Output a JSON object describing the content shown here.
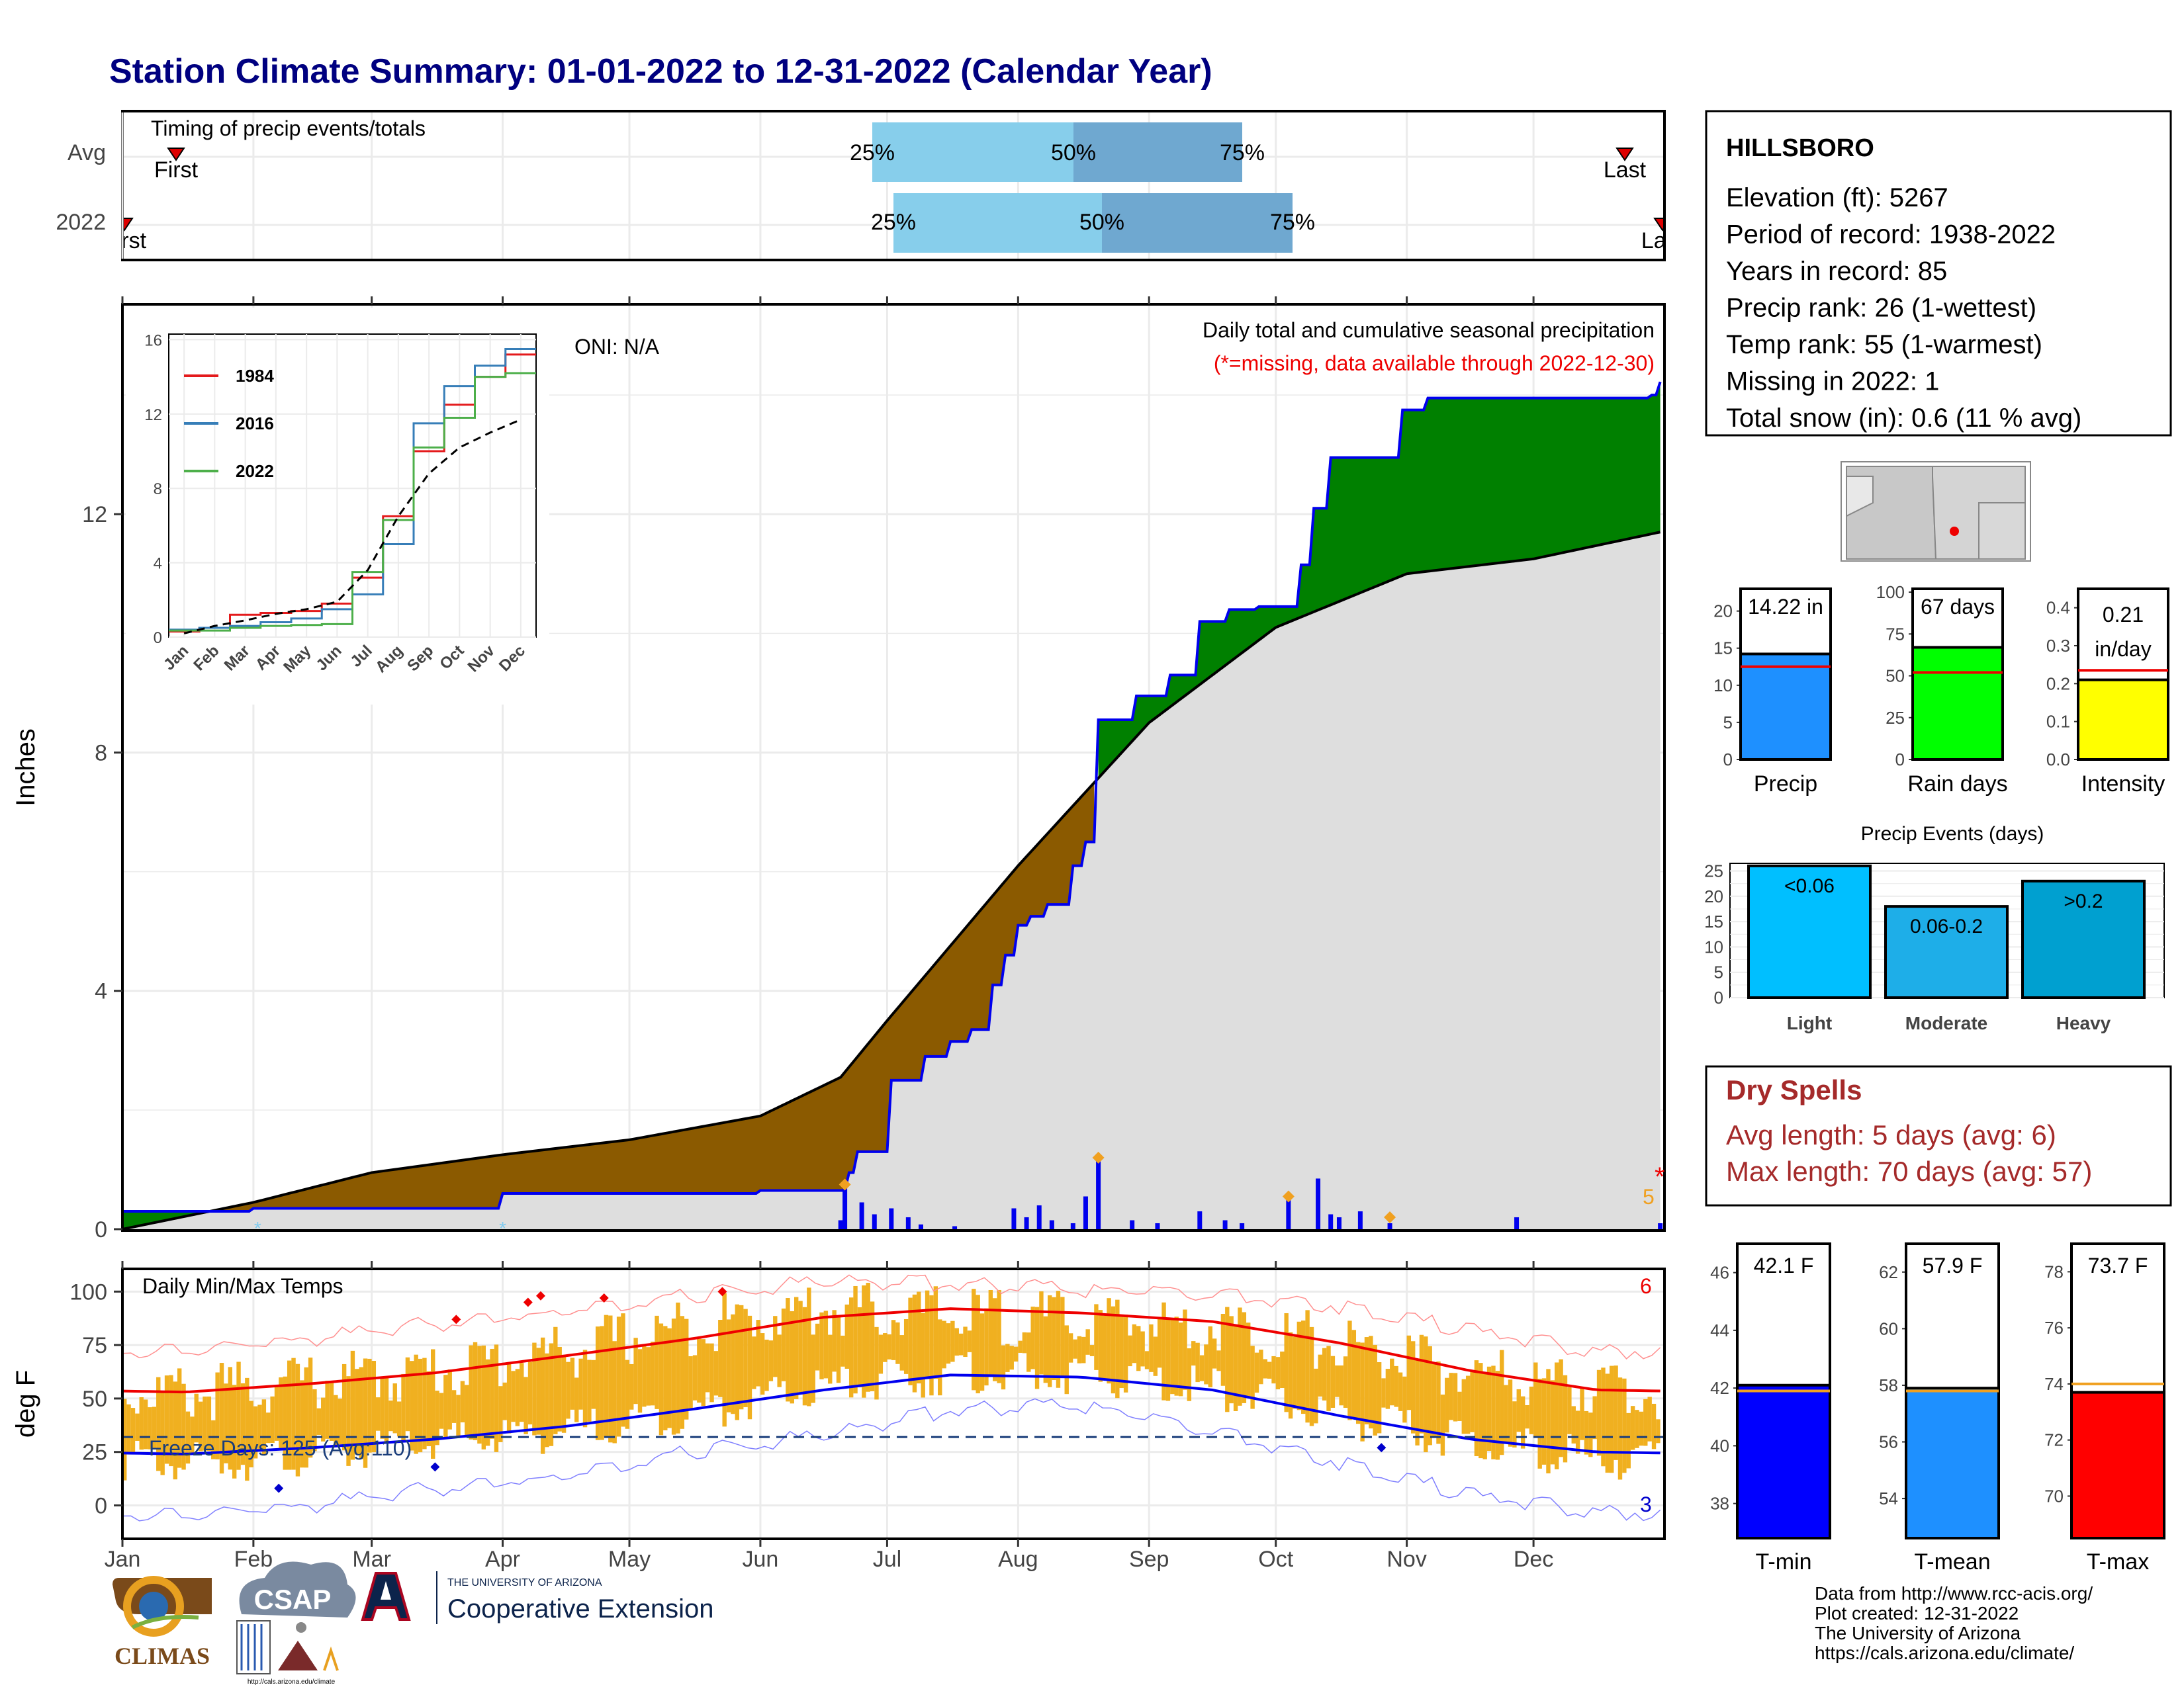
{
  "title": "Station Climate Summary: 01-01-2022 to 12-31-2022 (Calendar Year)",
  "timing_panel": {
    "title": "Timing of precip events/totals",
    "rows": [
      "Avg",
      "2022"
    ],
    "avg": {
      "first_label": "First",
      "last_label": "Last",
      "p25": "25%",
      "p50": "50%",
      "p75": "75%"
    },
    "y2022": {
      "first_label": "First",
      "last_label": "Last",
      "p25": "25%",
      "p50": "50%",
      "p75": "75%"
    }
  },
  "precip_panel": {
    "ylabel": "Inches",
    "caption": "Daily total and cumulative seasonal precipitation",
    "missing_note": "(*=missing, data available through 2022-12-30)",
    "oni": "ONI: N/A",
    "count_label": "5",
    "missing_marker": "*",
    "yticks": [
      "0",
      "4",
      "8",
      "12"
    ]
  },
  "inset": {
    "yticks": [
      "0",
      "4",
      "8",
      "12",
      "16"
    ],
    "months": [
      "Jan",
      "Feb",
      "Mar",
      "Apr",
      "May",
      "Jun",
      "Jul",
      "Aug",
      "Sep",
      "Oct",
      "Nov",
      "Dec"
    ],
    "legend": [
      "1984",
      "2016",
      "2022"
    ],
    "colors": {
      "1984": "#e41a1c",
      "2016": "#377eb8",
      "2022": "#4daf4a"
    }
  },
  "temp_panel": {
    "title": "Daily Min/Max Temps",
    "ylabel": "deg F",
    "freeze_label": "Freeze Days: 125 (Avg:110)",
    "count_top": "6",
    "count_bottom": "3",
    "yticks": [
      "0",
      "25",
      "50",
      "75",
      "100"
    ]
  },
  "months": [
    "Jan",
    "Feb",
    "Mar",
    "Apr",
    "May",
    "Jun",
    "Jul",
    "Aug",
    "Sep",
    "Oct",
    "Nov",
    "Dec"
  ],
  "station": {
    "name": "HILLSBORO",
    "lines": [
      "Elevation (ft): 5267",
      "Period of record: 1938-2022",
      "Years in record: 85",
      "Precip rank: 26 (1-wettest)",
      "Temp rank: 55 (1-warmest)",
      "Missing in 2022: 1",
      "Total snow (in): 0.6 (11 % avg)"
    ]
  },
  "summary_bars": [
    {
      "label": "Precip",
      "value_text": "14.22 in",
      "color": "#1e90ff",
      "yticks": [
        "0",
        "5",
        "10",
        "15",
        "20"
      ]
    },
    {
      "label": "Rain days",
      "value_text": "67 days",
      "color": "#00ff00",
      "yticks": [
        "0",
        "25",
        "50",
        "75",
        "100"
      ]
    },
    {
      "label": "Intensity",
      "value_text_1": "0.21",
      "value_text_2": "in/day",
      "color": "#ffff00",
      "yticks": [
        "0.0",
        "0.1",
        "0.2",
        "0.3",
        "0.4"
      ]
    }
  ],
  "precip_events": {
    "title": "Precip Events (days)",
    "bars": [
      {
        "label": "Light",
        "inner": "<0.06",
        "color": "#00bfff"
      },
      {
        "label": "Moderate",
        "inner": "0.06-0.2",
        "color": "#1eaee8"
      },
      {
        "label": "Heavy",
        "inner": ">0.2",
        "color": "#00a0d0"
      }
    ],
    "yticks": [
      "0",
      "5",
      "10",
      "15",
      "20",
      "25"
    ]
  },
  "dry_spells": {
    "title": "Dry Spells",
    "avg": "Avg length: 5 days (avg: 6)",
    "max": "Max length: 70 days (avg: 57)"
  },
  "temp_bars": [
    {
      "label": "T-min",
      "value_text": "42.1 F",
      "color": "#0000ff",
      "yticks": [
        "38",
        "40",
        "42",
        "44",
        "46"
      ]
    },
    {
      "label": "T-mean",
      "value_text": "57.9 F",
      "color": "#1e90ff",
      "yticks": [
        "54",
        "56",
        "58",
        "60",
        "62"
      ]
    },
    {
      "label": "T-max",
      "value_text": "73.7 F",
      "color": "#ff0000",
      "yticks": [
        "70",
        "72",
        "74",
        "76",
        "78"
      ]
    }
  ],
  "footer": {
    "lines": [
      "Data from http://www.rcc-acis.org/",
      "Plot created: 12-31-2022",
      "The University of Arizona",
      "https://cals.arizona.edu/climate/"
    ],
    "logos": {
      "climas": "CLIMAS",
      "csap": "CSAP",
      "csap_url": "http://cals.arizona.edu/climate",
      "ua_small": "THE UNIVERSITY OF ARIZONA",
      "ua_big": "Cooperative Extension"
    }
  },
  "chart_data": [
    {
      "type": "area",
      "title": "Daily total and cumulative seasonal precipitation",
      "ylabel": "Inches",
      "ylim": [
        0,
        15.5
      ],
      "x_unit": "day of year",
      "series": [
        {
          "name": "2022 cumulative",
          "x": [
            1,
            32,
            60,
            91,
            121,
            152,
            171,
            173,
            175,
            183,
            191,
            197,
            202,
            207,
            210,
            213,
            216,
            220,
            226,
            229,
            232,
            241,
            249,
            256,
            263,
            270,
            280,
            283,
            287,
            304,
            310,
            335,
            363,
            365
          ],
          "values": [
            0.3,
            0.35,
            0.35,
            0.6,
            0.6,
            0.65,
            0.65,
            0.95,
            1.3,
            2.5,
            2.9,
            3.15,
            3.35,
            4.1,
            4.6,
            5.1,
            5.25,
            5.45,
            6.1,
            6.5,
            8.55,
            8.95,
            9.3,
            10.2,
            10.4,
            10.45,
            11.15,
            12.1,
            12.95,
            13.75,
            13.95,
            13.95,
            14.0,
            14.22
          ]
        },
        {
          "name": "Avg cumulative",
          "x": [
            1,
            32,
            60,
            91,
            121,
            152,
            171,
            182,
            213,
            244,
            274,
            305,
            335,
            365
          ],
          "values": [
            0.0,
            0.45,
            0.95,
            1.25,
            1.5,
            1.9,
            2.55,
            3.5,
            6.1,
            8.5,
            10.1,
            11.0,
            11.25,
            11.7
          ]
        }
      ],
      "daily_bars": {
        "x": [
          171,
          172,
          176,
          179,
          183,
          187,
          190,
          198,
          212,
          215,
          218,
          221,
          226,
          229,
          232,
          240,
          246,
          256,
          262,
          266,
          277,
          284,
          287,
          289,
          294,
          301,
          331,
          365
        ],
        "values": [
          0.15,
          0.7,
          0.45,
          0.25,
          0.35,
          0.2,
          0.08,
          0.05,
          0.35,
          0.2,
          0.4,
          0.15,
          0.1,
          0.55,
          1.15,
          0.15,
          0.1,
          0.3,
          0.15,
          0.1,
          0.5,
          0.85,
          0.25,
          0.2,
          0.3,
          0.1,
          0.2,
          0.1
        ]
      }
    },
    {
      "type": "line",
      "title": "",
      "xlabel": "",
      "ylabel": "",
      "ylim": [
        0,
        16
      ],
      "categories": [
        "Jan",
        "Feb",
        "Mar",
        "Apr",
        "May",
        "Jun",
        "Jul",
        "Aug",
        "Sep",
        "Oct",
        "Nov",
        "Dec"
      ],
      "series": [
        {
          "name": "1984",
          "values": [
            0.3,
            0.5,
            1.2,
            1.3,
            1.4,
            1.8,
            3.2,
            6.5,
            10.0,
            12.5,
            14.0,
            15.2
          ]
        },
        {
          "name": "2016",
          "values": [
            0.4,
            0.5,
            0.6,
            0.8,
            1.0,
            1.5,
            2.3,
            5.0,
            11.5,
            13.5,
            14.6,
            15.5
          ]
        },
        {
          "name": "2022",
          "values": [
            0.35,
            0.35,
            0.5,
            0.6,
            0.65,
            0.7,
            3.5,
            6.3,
            10.2,
            11.8,
            14.0,
            14.2
          ]
        },
        {
          "name": "",
          "values": [
            0.2,
            0.6,
            0.9,
            1.25,
            1.5,
            1.9,
            3.6,
            6.5,
            8.8,
            10.2,
            11.0,
            11.7
          ]
        }
      ]
    },
    {
      "type": "line",
      "title": "Daily Min/Max Temps",
      "ylabel": "deg F",
      "ylim": [
        -15,
        110
      ],
      "categories": [
        "Jan",
        "Feb",
        "Mar",
        "Apr",
        "May",
        "Jun",
        "Jul",
        "Aug",
        "Sep",
        "Oct",
        "Nov",
        "Dec"
      ],
      "series": [
        {
          "name": "Avg max",
          "values": [
            53,
            57,
            62,
            70,
            78,
            88,
            92,
            90,
            86,
            76,
            63,
            54
          ]
        },
        {
          "name": "Avg min",
          "values": [
            24,
            27,
            31,
            37,
            45,
            54,
            61,
            60,
            54,
            42,
            31,
            25
          ]
        },
        {
          "name": "Record max",
          "values": [
            72,
            78,
            85,
            91,
            98,
            105,
            104,
            101,
            99,
            93,
            82,
            72
          ]
        },
        {
          "name": "Record min",
          "values": [
            -5,
            0,
            8,
            14,
            25,
            33,
            45,
            47,
            35,
            20,
            5,
            -3
          ]
        },
        {
          "name": "Daily max 2022",
          "values": [
            52,
            58,
            63,
            72,
            84,
            92,
            89,
            86,
            84,
            75,
            61,
            55
          ]
        },
        {
          "name": "Daily min 2022",
          "values": [
            20,
            23,
            29,
            35,
            44,
            55,
            62,
            61,
            55,
            42,
            29,
            22
          ]
        }
      ],
      "freeze_line": 32
    },
    {
      "type": "bar",
      "title": "Precip Events (days)",
      "categories": [
        "Light",
        "Moderate",
        "Heavy"
      ],
      "values": [
        26,
        18,
        23
      ],
      "ylim": [
        0,
        26
      ]
    },
    {
      "type": "bar",
      "categories": [
        "Precip",
        "Rain days",
        "Intensity"
      ],
      "values": [
        14.22,
        67,
        0.21
      ],
      "averages": [
        12.5,
        52,
        0.235
      ]
    },
    {
      "type": "bar",
      "categories": [
        "T-min",
        "T-mean",
        "T-max"
      ],
      "values": [
        42.1,
        57.9,
        73.7
      ],
      "averages": [
        41.9,
        57.8,
        74.0
      ]
    }
  ]
}
